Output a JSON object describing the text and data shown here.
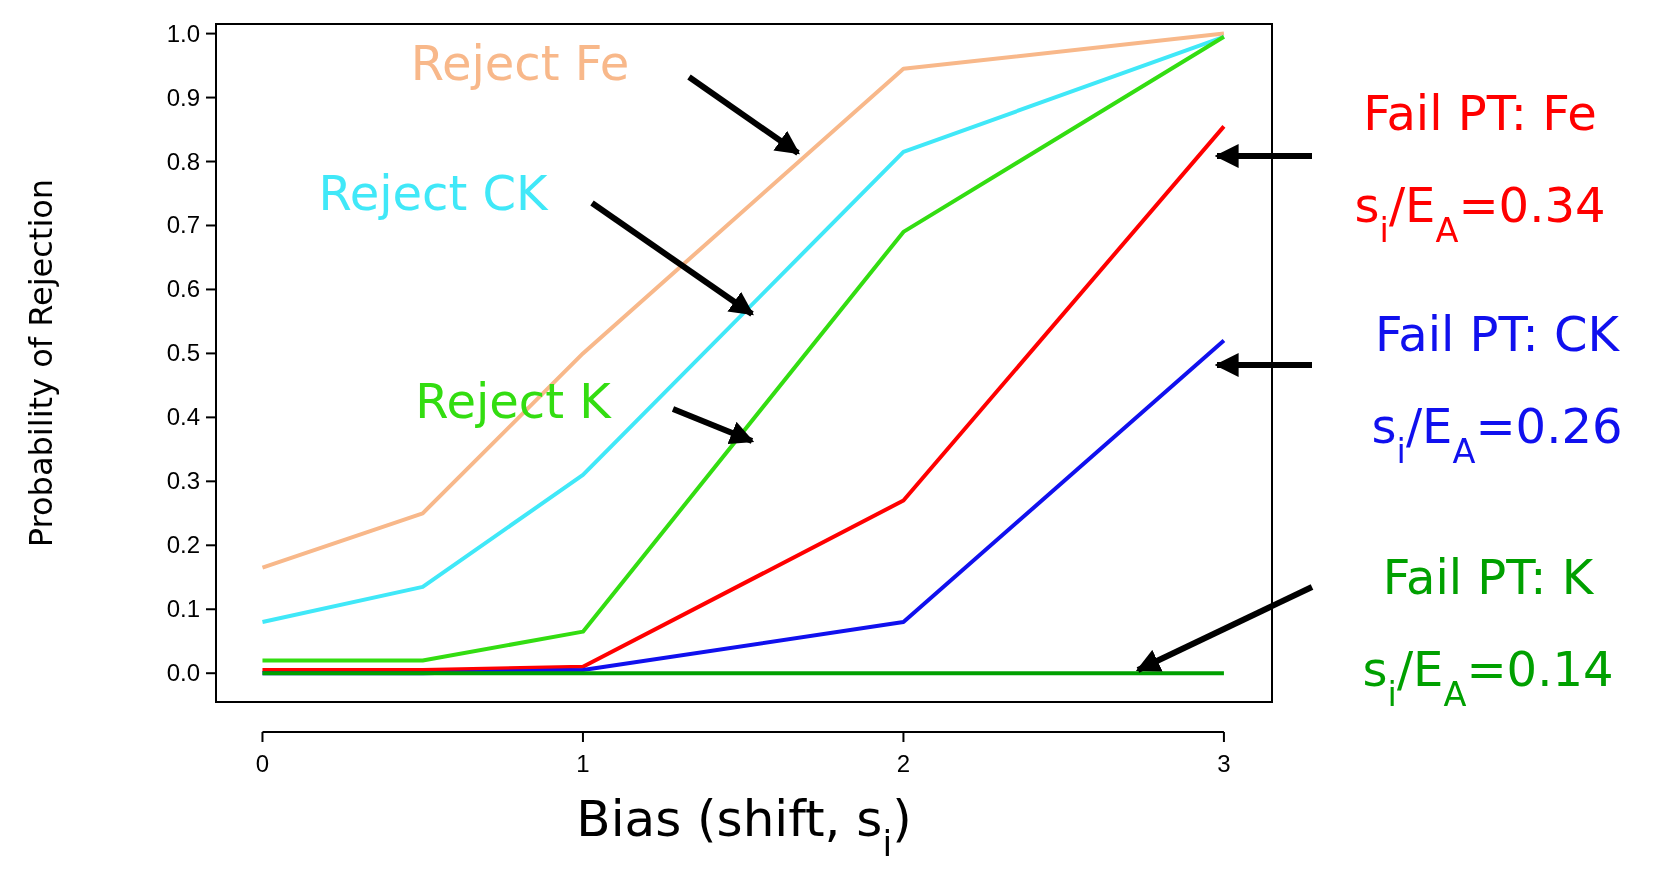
{
  "chart_data": {
    "type": "line",
    "xlabel": "Bias (shift, s$_{i}$)",
    "ylabel": "Probability of Rejection",
    "x": [
      0,
      0.5,
      1,
      2,
      3
    ],
    "xlim": [
      -0.145,
      3.15
    ],
    "xticks": [
      0,
      1,
      2,
      3
    ],
    "ylim": [
      -0.045,
      1.015
    ],
    "yticks": [
      {
        "value": 0,
        "label": "0.0"
      },
      {
        "value": 0.1,
        "label": "0.1"
      },
      {
        "value": 0.2,
        "label": "0.2"
      },
      {
        "value": 0.3,
        "label": "0.3"
      },
      {
        "value": 0.4,
        "label": "0.4"
      },
      {
        "value": 0.5,
        "label": "0.5"
      },
      {
        "value": 0.6,
        "label": "0.6"
      },
      {
        "value": 0.7,
        "label": "0.7"
      },
      {
        "value": 0.8,
        "label": "0.8"
      },
      {
        "value": 0.9,
        "label": "0.9"
      },
      {
        "value": 1,
        "label": "1.0"
      }
    ],
    "grid": false,
    "marker": "none",
    "line_style": "solid",
    "series": [
      {
        "name": "Reject Fe",
        "color": "#f8b88a",
        "values": [
          0.165,
          0.25,
          0.5,
          0.945,
          1.0
        ]
      },
      {
        "name": "Reject CK",
        "color": "#40e8f8",
        "values": [
          0.08,
          0.135,
          0.31,
          0.815,
          0.995
        ]
      },
      {
        "name": "Reject K",
        "color": "#33dd11",
        "values": [
          0.02,
          0.02,
          0.065,
          0.69,
          0.995
        ]
      },
      {
        "name": "Fail PT: Fe\ns$_{i}$/E$_{A}$=0.34",
        "color": "#ff0000",
        "values": [
          0.005,
          0.005,
          0.01,
          0.27,
          0.855
        ]
      },
      {
        "name": "Fail PT: CK\ns$_{i}$/E$_{A}$=0.26",
        "color": "#1010ee",
        "values": [
          0,
          0,
          0.005,
          0.08,
          0.52
        ]
      },
      {
        "name": "Fail PT: K\ns$_{i}$/E$_{A}$=0.14",
        "color": "#00a000",
        "values": [
          0,
          0,
          0,
          0,
          0
        ]
      }
    ]
  }
}
